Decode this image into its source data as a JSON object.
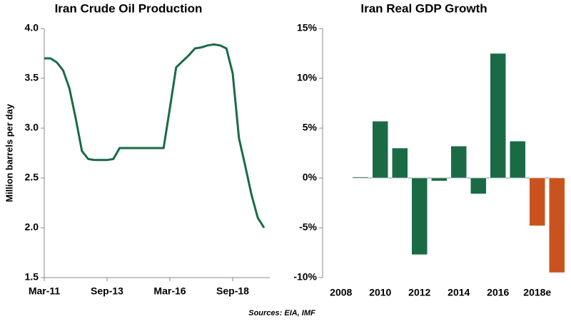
{
  "chart_data": [
    {
      "type": "line",
      "title": "Iran Crude Oil Production",
      "y_label": "Million barrels per day",
      "categories": [
        "Mar-11",
        null,
        null,
        null,
        null,
        null,
        null,
        null,
        null,
        null,
        "Sep-13",
        null,
        null,
        null,
        null,
        null,
        null,
        null,
        null,
        null,
        "Mar-16",
        null,
        null,
        null,
        null,
        null,
        null,
        null,
        null,
        null,
        "Sep-18",
        null,
        null,
        null,
        null,
        null
      ],
      "series": [
        {
          "name": "Crude oil production",
          "color": "#1a6b45",
          "values": [
            3.7,
            3.7,
            3.66,
            3.58,
            3.4,
            3.1,
            2.77,
            2.69,
            2.68,
            2.68,
            2.68,
            2.69,
            2.8,
            2.8,
            2.8,
            2.8,
            2.8,
            2.8,
            2.8,
            2.8,
            3.2,
            3.61,
            3.67,
            3.73,
            3.8,
            3.81,
            3.83,
            3.84,
            3.83,
            3.8,
            3.55,
            2.9,
            2.62,
            2.33,
            2.1,
            2.0
          ]
        }
      ],
      "ylim": [
        1.5,
        4.0
      ],
      "yticks": [
        {
          "value": 1.5,
          "label": "1.5"
        },
        {
          "value": 2,
          "label": "2.0"
        },
        {
          "value": 2.5,
          "label": "2.5"
        },
        {
          "value": 3,
          "label": "3.0"
        },
        {
          "value": 3.5,
          "label": "3.5"
        },
        {
          "value": 4,
          "label": "4.0"
        }
      ],
      "grid": false
    },
    {
      "type": "bar",
      "title": "Iran Real GDP Growth",
      "categories": [
        "2008",
        null,
        "2010",
        null,
        "2012",
        null,
        "2014",
        null,
        "2016",
        null,
        "2018e",
        null
      ],
      "values": [
        null,
        0.1,
        5.7,
        3.0,
        -7.7,
        -0.3,
        3.2,
        -1.6,
        12.5,
        3.7,
        -4.8,
        -9.5
      ],
      "colors": [
        "#1a6b45",
        "#1a6b45",
        "#1a6b45",
        "#1a6b45",
        "#1a6b45",
        "#1a6b45",
        "#1a6b45",
        "#1a6b45",
        "#1a6b45",
        "#1a6b45",
        "#c8531e",
        "#c8531e"
      ],
      "ylim": [
        -10,
        15
      ],
      "yticks": [
        {
          "value": -10,
          "label": "-10%"
        },
        {
          "value": -5,
          "label": "-5%"
        },
        {
          "value": 0,
          "label": "0%"
        },
        {
          "value": 5,
          "label": "5%"
        },
        {
          "value": 10,
          "label": "10%"
        },
        {
          "value": 15,
          "label": "15%"
        }
      ],
      "grid": false
    }
  ],
  "source": "Sources: EIA, IMF"
}
